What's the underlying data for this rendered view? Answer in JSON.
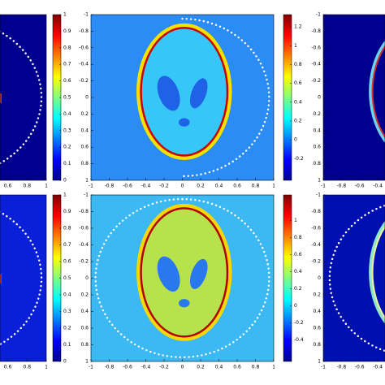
{
  "chart_data": [
    {
      "type": "heatmap",
      "xlim": [
        0.52,
        1
      ],
      "xticks": [
        0.6,
        0.8,
        1
      ],
      "ylim": [
        -1,
        1
      ],
      "yreverse": true,
      "clim": [
        0,
        1
      ],
      "cticks": [
        0,
        0.1,
        0.2,
        0.3,
        0.4,
        0.5,
        0.6,
        0.7,
        0.8,
        0.9,
        1
      ]
    },
    {
      "type": "heatmap",
      "xlim": [
        -1,
        1
      ],
      "xticks": [
        -1,
        -0.8,
        -0.6,
        -0.4,
        -0.2,
        0,
        0.2,
        0.4,
        0.6,
        0.8,
        1
      ],
      "ylim": [
        -1,
        1
      ],
      "yticks": [
        -1,
        -0.8,
        -0.6,
        -0.4,
        -0.2,
        0,
        0.2,
        0.4,
        0.6,
        0.8,
        1
      ],
      "yreverse": true,
      "clim": [
        -0.43,
        1.33
      ],
      "cticks": [
        -0.2,
        0,
        0.2,
        0.4,
        0.6,
        0.8,
        1,
        1.2
      ]
    },
    {
      "type": "heatmap",
      "xlim": [
        -1,
        -0.32
      ],
      "xticks": [
        -1,
        -0.8,
        -0.6,
        -0.4
      ],
      "ylim": [
        -1,
        1
      ],
      "yticks": [
        -1,
        -0.8,
        -0.6,
        -0.4,
        -0.2,
        0,
        0.2,
        0.4,
        0.6,
        0.8,
        1
      ],
      "yreverse": true
    },
    {
      "type": "heatmap",
      "xlim": [
        0.52,
        1
      ],
      "xticks": [
        0.6,
        0.8,
        1
      ],
      "ylim": [
        -1,
        1
      ],
      "yreverse": true,
      "clim": [
        0,
        1
      ],
      "cticks": [
        0,
        0.1,
        0.2,
        0.3,
        0.4,
        0.5,
        0.6,
        0.7,
        0.8,
        0.9,
        1
      ]
    },
    {
      "type": "heatmap",
      "xlim": [
        -1,
        1
      ],
      "xticks": [
        -1,
        -0.8,
        -0.6,
        -0.4,
        -0.2,
        0,
        0.2,
        0.4,
        0.6,
        0.8,
        1
      ],
      "ylim": [
        -1,
        1
      ],
      "yticks": [
        -1,
        -0.8,
        -0.6,
        -0.4,
        -0.2,
        0,
        0.2,
        0.4,
        0.6,
        0.8,
        1
      ],
      "yreverse": true,
      "clim": [
        -0.65,
        1.3
      ],
      "cticks": [
        -0.4,
        -0.2,
        0,
        0.2,
        0.4,
        0.6,
        0.8,
        1
      ]
    },
    {
      "type": "heatmap",
      "xlim": [
        -1,
        -0.32
      ],
      "xticks": [
        -1,
        -0.8,
        -0.6,
        -0.4
      ],
      "ylim": [
        -1,
        1
      ],
      "yticks": [
        -1,
        -0.8,
        -0.6,
        -0.4,
        -0.2,
        0,
        0.2,
        0.4,
        0.6,
        0.8,
        1
      ],
      "yreverse": true
    }
  ]
}
